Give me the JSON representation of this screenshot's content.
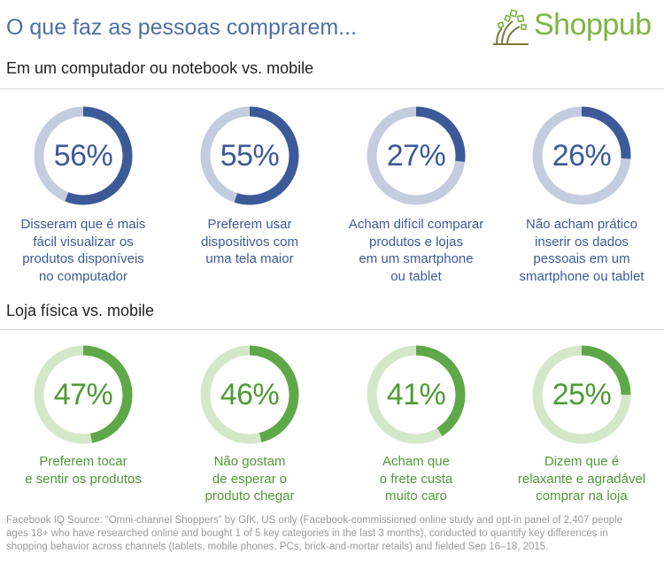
{
  "header": {
    "title": "O que faz as pessoas comprarem...",
    "logo_text": "Shoppub"
  },
  "colors": {
    "blue": "#3d5a98",
    "blue_track": "#c4cce0",
    "blue_text": "#3d5a98",
    "green": "#5fa849",
    "green_track": "#d4e8c9",
    "green_text": "#4f9a37"
  },
  "chart_data": [
    {
      "type": "pie",
      "title": "Em um computador ou notebook vs. mobile",
      "items": [
        {
          "value": 56,
          "label": "56%",
          "caption": [
            "Disseram que é mais",
            "fácil visualizar os",
            "produtos disponíveis",
            "no computador"
          ]
        },
        {
          "value": 55,
          "label": "55%",
          "caption": [
            "Preferem usar",
            "dispositivos com",
            "uma tela maior"
          ]
        },
        {
          "value": 27,
          "label": "27%",
          "caption": [
            "Acham difícil comparar",
            "produtos e lojas",
            "em um smartphone",
            "ou tablet"
          ]
        },
        {
          "value": 26,
          "label": "26%",
          "caption": [
            "Não acham prático",
            "inserir os dados",
            "pessoais em um",
            "smartphone ou tablet"
          ]
        }
      ]
    },
    {
      "type": "pie",
      "title": "Loja física vs. mobile",
      "items": [
        {
          "value": 47,
          "label": "47%",
          "caption": [
            "Preferem tocar",
            "e sentir os produtos"
          ]
        },
        {
          "value": 46,
          "label": "46%",
          "caption": [
            "Não gostam",
            "de esperar o",
            "produto chegar"
          ]
        },
        {
          "value": 41,
          "label": "41%",
          "caption": [
            "Acham que",
            "o frete custa",
            "muito caro"
          ]
        },
        {
          "value": 25,
          "label": "25%",
          "caption": [
            "Dizem que é",
            "relaxante e agradável",
            "comprar na loja"
          ]
        }
      ]
    }
  ],
  "footnote": [
    "Facebook IQ Source: “Omni-channel Shoppers” by GfK, US only (Facebook-commissioned online study and opt-in panel of 2,407 people",
    "ages 18+ who have researched online and bought 1 of 5 key categories in the last 3 months), conducted to quantify key differences in",
    "shopping behavior across channels (tablets, mobile phones, PCs, brick-and-mortar retails) and fielded Sep 16–18, 2015."
  ]
}
